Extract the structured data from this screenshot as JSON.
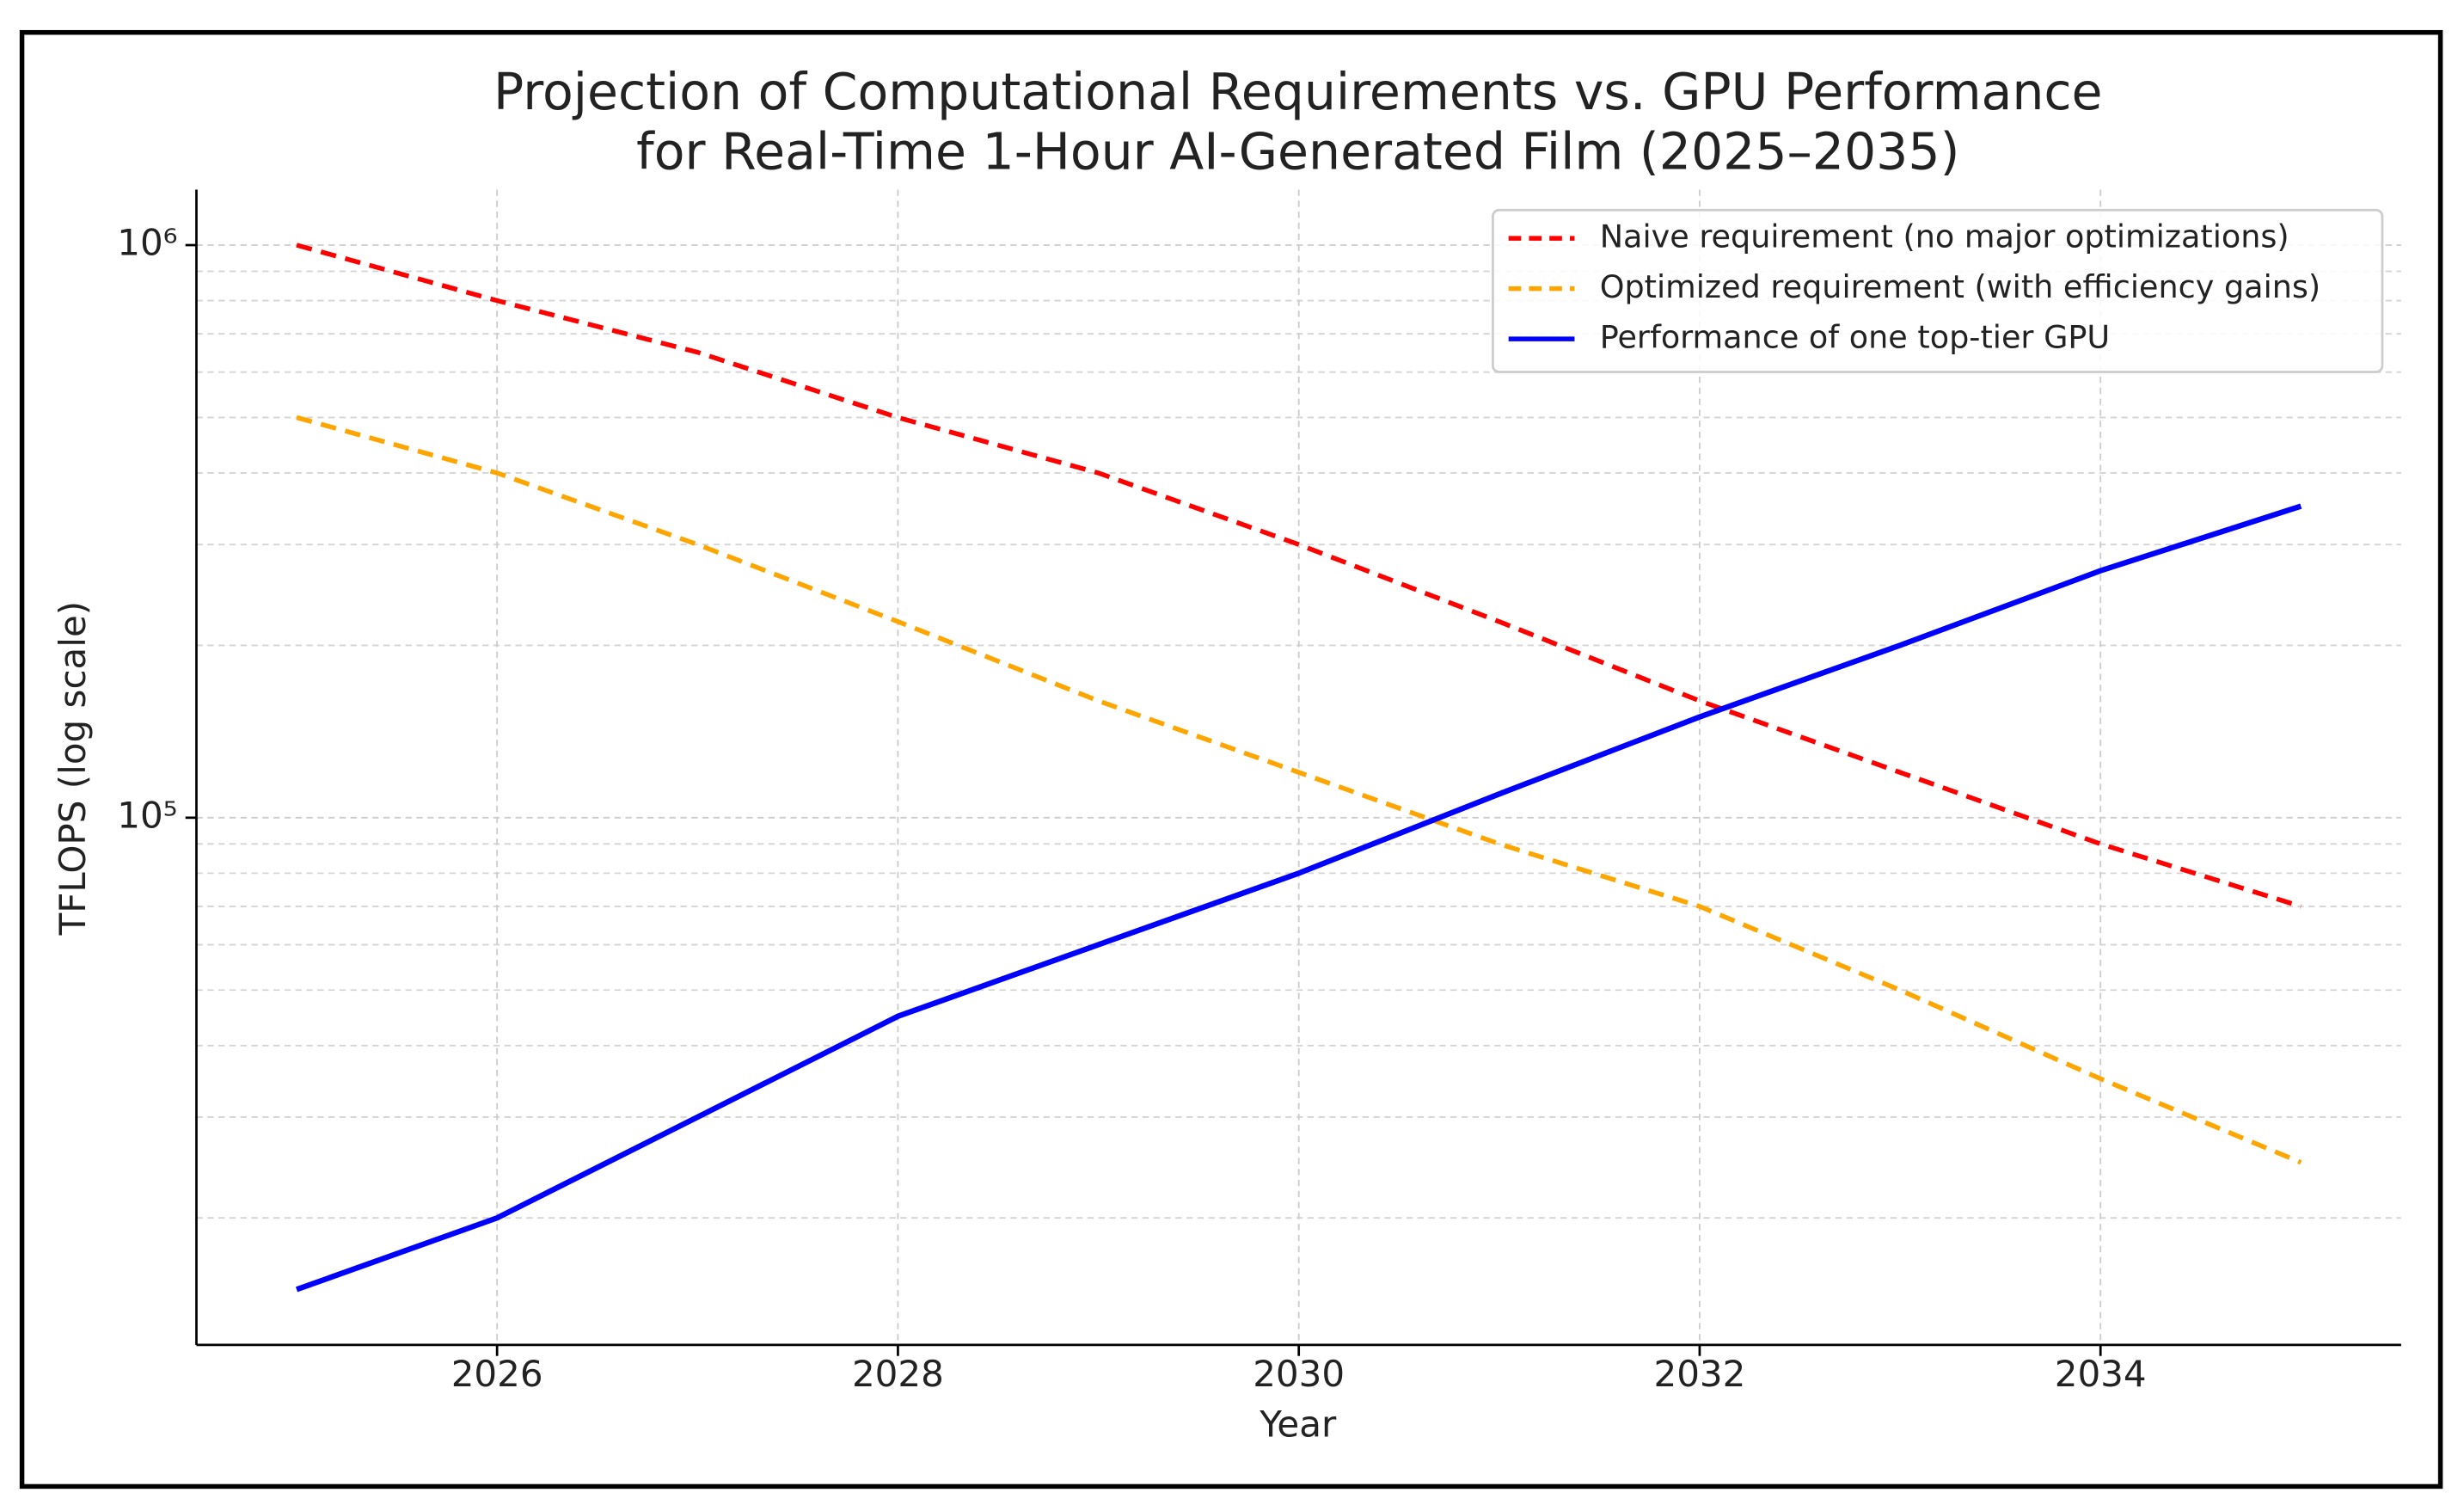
{
  "chart_data": {
    "type": "line",
    "title": [
      "Projection of Computational Requirements vs. GPU Performance",
      "for Real-Time 1-Hour AI-Generated Film (2025–2035)"
    ],
    "x_label": "Year",
    "y_label": "TFLOPS (log scale)",
    "x": [
      2025,
      2026,
      2027,
      2028,
      2029,
      2030,
      2031,
      2032,
      2033,
      2034,
      2035
    ],
    "series": [
      {
        "name": "Naive requirement (no major optimizations)",
        "color": "#ff0000",
        "linestyle": "dashed",
        "values": [
          1000000,
          800000,
          650000,
          500000,
          400000,
          300000,
          220000,
          160000,
          120000,
          90000,
          70000
        ]
      },
      {
        "name": "Optimized requirement (with efficiency gains)",
        "color": "#ffa500",
        "linestyle": "dashed",
        "values": [
          500000,
          400000,
          300000,
          220000,
          160000,
          120000,
          90000,
          70000,
          50000,
          35000,
          25000
        ]
      },
      {
        "name": "Performance of one top-tier GPU",
        "color": "#0000ff",
        "linestyle": "solid",
        "values": [
          15000,
          20000,
          30000,
          45000,
          60000,
          80000,
          110000,
          150000,
          200000,
          270000,
          350000
        ]
      }
    ],
    "xlim": [
      2024.5,
      2035.5
    ],
    "xticks": [
      2026,
      2028,
      2030,
      2032,
      2034
    ],
    "ylim": [
      12000,
      1250000
    ],
    "y_log_scale": true,
    "yticks": [
      {
        "value": 100000,
        "label": "10⁵"
      },
      {
        "value": 1000000,
        "label": "10⁶"
      }
    ],
    "y_minor_ticks": [
      20000,
      30000,
      40000,
      50000,
      60000,
      70000,
      80000,
      90000,
      200000,
      300000,
      400000,
      500000,
      600000,
      700000,
      800000,
      900000
    ],
    "grid": true,
    "legend": "upper right"
  }
}
